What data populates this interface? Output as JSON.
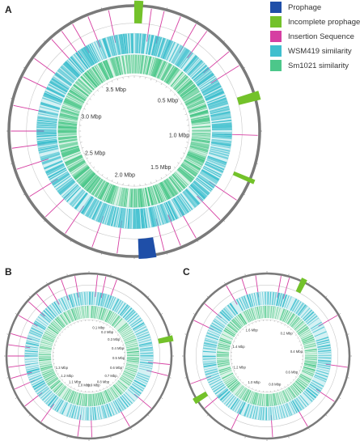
{
  "colors": {
    "prophage": "#1f4fa8",
    "incomplete_prophage": "#73c22a",
    "insertion_sequence": "#d63fa2",
    "wsm419_similarity": "#3fbfce",
    "sm1021_similarity": "#4cc78a",
    "outer_ring": "#7a7a7a"
  },
  "legend": [
    {
      "label": "Prophage",
      "color_key": "prophage"
    },
    {
      "label": "Incomplete prophage",
      "color_key": "incomplete_prophage"
    },
    {
      "label": "Insertion Sequence",
      "color_key": "insertion_sequence"
    },
    {
      "label": "WSM419 similarity",
      "color_key": "wsm419_similarity"
    },
    {
      "label": "Sm1021 similarity",
      "color_key": "sm1021_similarity"
    }
  ],
  "panels": [
    {
      "letter": "A",
      "genome_size_mbp": 3.75,
      "ticks": [
        {
          "label": "0.5 Mbp",
          "pos_mbp": 0.5
        },
        {
          "label": "1.0 Mbp",
          "pos_mbp": 1.0
        },
        {
          "label": "1.5 Mbp",
          "pos_mbp": 1.5
        },
        {
          "label": "2.0 Mbp",
          "pos_mbp": 2.0
        },
        {
          "label": "2.5 Mbp",
          "pos_mbp": 2.5
        },
        {
          "label": "3.0 Mbp",
          "pos_mbp": 3.0
        },
        {
          "label": "3.5 Mbp",
          "pos_mbp": 3.5
        }
      ],
      "prophages_deg": [
        [
          170,
          178
        ]
      ],
      "incomplete_prophages_deg": [
        [
          0,
          4
        ],
        [
          72,
          76
        ],
        [
          112,
          114
        ]
      ],
      "insertion_sequences_deg": [
        -36,
        -30,
        -22,
        -12,
        8,
        14,
        22,
        30,
        36,
        50,
        58,
        92,
        124,
        136,
        150,
        158,
        166,
        188,
        200,
        214,
        226,
        238,
        252,
        262,
        270,
        282,
        296,
        306,
        318
      ],
      "seed": 11
    },
    {
      "letter": "B",
      "genome_size_mbp": 1.9,
      "ticks": [
        {
          "label": "0.1 Mbp",
          "pos_mbp": 0.1
        },
        {
          "label": "0.2 Mbp",
          "pos_mbp": 0.2
        },
        {
          "label": "0.3 Mbp",
          "pos_mbp": 0.3
        },
        {
          "label": "0.4 Mbp",
          "pos_mbp": 0.4
        },
        {
          "label": "0.5 Mbp",
          "pos_mbp": 0.5
        },
        {
          "label": "0.6 Mbp",
          "pos_mbp": 0.6
        },
        {
          "label": "0.7 Mbp",
          "pos_mbp": 0.7
        },
        {
          "label": "0.8 Mbp",
          "pos_mbp": 0.8
        },
        {
          "label": "0.9 Mbp",
          "pos_mbp": 0.9
        },
        {
          "label": "1.0 Mbp",
          "pos_mbp": 1.0
        },
        {
          "label": "1.1 Mbp",
          "pos_mbp": 1.1
        },
        {
          "label": "1.2 Mbp",
          "pos_mbp": 1.2
        },
        {
          "label": "1.3 Mbp",
          "pos_mbp": 1.3
        }
      ],
      "prophages_deg": [],
      "incomplete_prophages_deg": [
        [
          76,
          80
        ]
      ],
      "insertion_sequences_deg": [
        -40,
        -30,
        -20,
        -10,
        6,
        12,
        20,
        96,
        104,
        130,
        150,
        178,
        188,
        216,
        232,
        246,
        254,
        262,
        270,
        278,
        286,
        300,
        312
      ],
      "seed": 23
    },
    {
      "letter": "C",
      "genome_size_mbp": 1.75,
      "ticks": [
        {
          "label": "0.2 Mbp",
          "pos_mbp": 0.2
        },
        {
          "label": "0.4 Mbp",
          "pos_mbp": 0.4
        },
        {
          "label": "0.6 Mbp",
          "pos_mbp": 0.6
        },
        {
          "label": "0.8 Mbp",
          "pos_mbp": 0.8
        },
        {
          "label": "1.0 Mbp",
          "pos_mbp": 1.0
        },
        {
          "label": "1.2 Mbp",
          "pos_mbp": 1.2
        },
        {
          "label": "1.4 Mbp",
          "pos_mbp": 1.4
        },
        {
          "label": "1.6 Mbp",
          "pos_mbp": 1.6
        }
      ],
      "prophages_deg": [],
      "incomplete_prophages_deg": [
        [
          24,
          28
        ],
        [
          236,
          240
        ]
      ],
      "insertion_sequences_deg": [
        -30,
        -18,
        -8,
        10,
        16,
        60,
        98,
        124,
        150,
        176,
        206,
        230,
        250,
        296,
        310
      ],
      "seed": 37
    }
  ]
}
